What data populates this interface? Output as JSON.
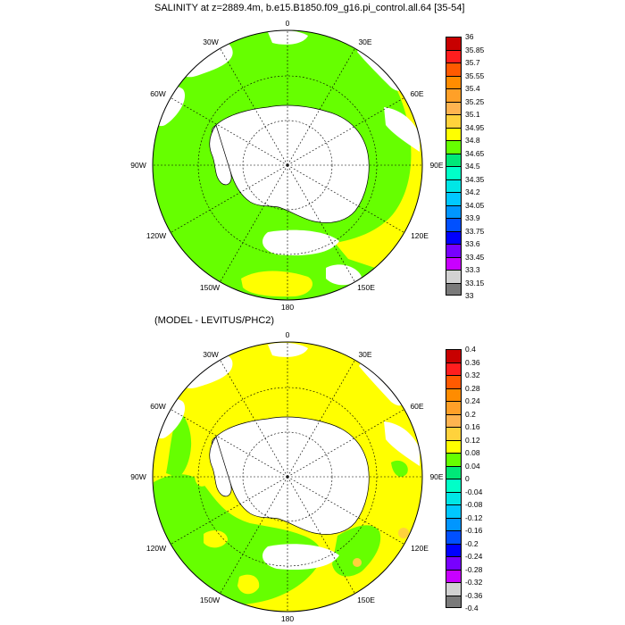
{
  "panels": [
    {
      "title": "SALINITY at z=2889.4m, b.e15.B1850.f09_g16.pi_control.all.64 [35-54]",
      "colorbar": {
        "labels": [
          "36",
          "35.85",
          "35.7",
          "35.55",
          "35.4",
          "35.25",
          "35.1",
          "34.95",
          "34.8",
          "34.65",
          "34.5",
          "34.35",
          "34.2",
          "34.05",
          "33.9",
          "33.75",
          "33.6",
          "33.45",
          "33.3",
          "33.15",
          "33"
        ],
        "colors": [
          "#c80000",
          "#ff1e1e",
          "#ff5a00",
          "#ff8c00",
          "#ffa028",
          "#ffb450",
          "#ffd23c",
          "#ffff00",
          "#66ff00",
          "#00e878",
          "#00ffc8",
          "#00e6e6",
          "#00c8ff",
          "#0096ff",
          "#0050ff",
          "#0000ff",
          "#7800ff",
          "#c800ff",
          "#d2d2d2",
          "#7a7a7a"
        ]
      }
    },
    {
      "title": "(MODEL - LEVITUS/PHC2)",
      "colorbar": {
        "labels": [
          "0.4",
          "0.36",
          "0.32",
          "0.28",
          "0.24",
          "0.2",
          "0.16",
          "0.12",
          "0.08",
          "0.04",
          "0",
          "-0.04",
          "-0.08",
          "-0.12",
          "-0.16",
          "-0.2",
          "-0.24",
          "-0.28",
          "-0.32",
          "-0.36",
          "-0.4"
        ],
        "colors": [
          "#c80000",
          "#ff1e1e",
          "#ff5a00",
          "#ff8c00",
          "#ffa028",
          "#ffb450",
          "#ffd23c",
          "#ffff00",
          "#66ff00",
          "#00e878",
          "#00ffc8",
          "#00e6e6",
          "#00c8ff",
          "#0096ff",
          "#0050ff",
          "#0000ff",
          "#7800ff",
          "#c800ff",
          "#d2d2d2",
          "#7a7a7a"
        ]
      }
    }
  ],
  "longitude_labels": {
    "lon_0": "0",
    "lon_30e": "30E",
    "lon_60e": "60E",
    "lon_90e": "90E",
    "lon_120e": "120E",
    "lon_150e": "150E",
    "lon_180": "180",
    "lon_150w": "150W",
    "lon_120w": "120W",
    "lon_90w": "90W",
    "lon_60w": "60W",
    "lon_30w": "30W"
  },
  "colors": {
    "land": "#ffffff",
    "coast": "#000000",
    "grid": "#000000"
  }
}
